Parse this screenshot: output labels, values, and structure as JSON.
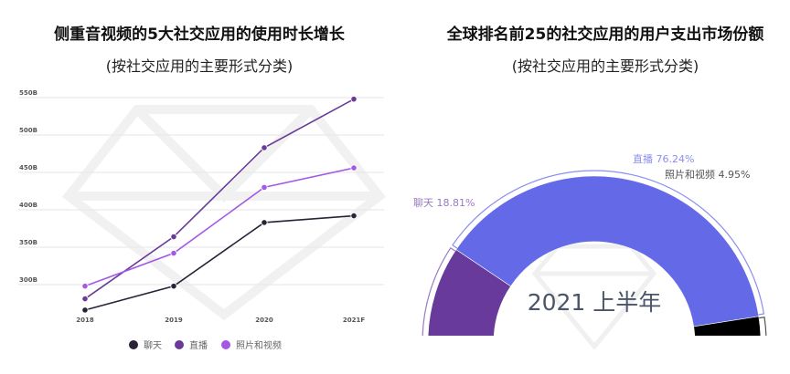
{
  "chart_data": [
    {
      "type": "line",
      "title": "侧重音视频的5大社交应用的使用时长增长",
      "subtitle": "(按社交应用的主要形式分类)",
      "categories": [
        "2018",
        "2019",
        "2020",
        "2021F"
      ],
      "y_ticks": [
        "300B",
        "350B",
        "400B",
        "450B",
        "500B",
        "550B"
      ],
      "ylim": [
        275,
        550
      ],
      "grid": true,
      "legend_position": "bottom",
      "series": [
        {
          "name": "聊天",
          "color": "#2b2238",
          "values": [
            266,
            298,
            383,
            392
          ]
        },
        {
          "name": "直播",
          "color": "#6a3a9a",
          "values": [
            281,
            364,
            483,
            548
          ]
        },
        {
          "name": "照片和视频",
          "color": "#a259e6",
          "values": [
            298,
            342,
            430,
            456
          ]
        }
      ]
    },
    {
      "type": "pie",
      "title": "全球排名前25的社交应用的用户支出市场份额",
      "subtitle": "(按社交应用的主要形式分类)",
      "center_label": "2021 上半年",
      "slices": [
        {
          "name": "聊天",
          "value": 18.81,
          "label": "聊天 18.81%",
          "color": "#673a9b",
          "label_color": "#9a7bc0"
        },
        {
          "name": "直播",
          "value": 76.24,
          "label": "直播 76.24%",
          "color": "#6469e8",
          "label_color": "#8a8ef0"
        },
        {
          "name": "照片和视频",
          "value": 4.95,
          "label": "照片和视频 4.95%",
          "color": "#000000",
          "label_color": "#555555"
        }
      ]
    }
  ]
}
